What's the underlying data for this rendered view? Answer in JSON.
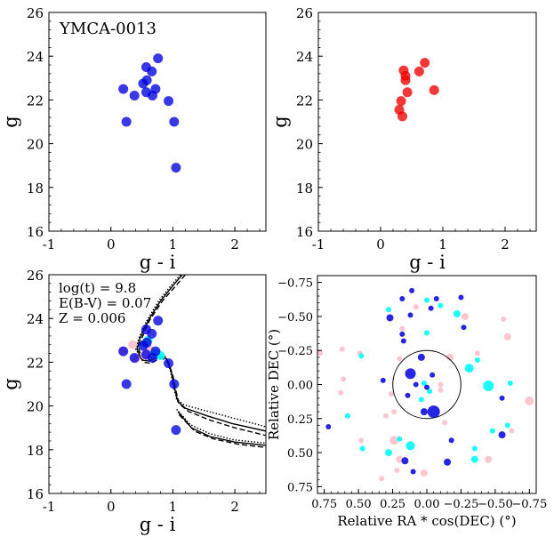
{
  "colors": {
    "blue": "#0000dd",
    "red": "#ee0000",
    "cyan": "#00ffff",
    "pink": "#ffc0cb",
    "axis": "#000000"
  },
  "chart_data": [
    {
      "type": "scatter",
      "id": "cmd_blue",
      "annotation": "YMCA-0013",
      "xlabel": "g - i",
      "ylabel": "g",
      "xlim": [
        -1,
        2.5
      ],
      "ylim": [
        26,
        16
      ],
      "xticks": [
        "-1",
        "0",
        "1",
        "2"
      ],
      "yticks": [
        "16",
        "18",
        "20",
        "22",
        "24",
        "26"
      ],
      "series": [
        {
          "color": "blue",
          "points": [
            [
              1.05,
              18.9
            ],
            [
              0.25,
              21.0
            ],
            [
              1.02,
              21.0
            ],
            [
              0.2,
              22.5
            ],
            [
              0.38,
              22.2
            ],
            [
              0.52,
              22.75
            ],
            [
              0.58,
              22.9
            ],
            [
              0.57,
              22.35
            ],
            [
              0.67,
              22.2
            ],
            [
              0.72,
              22.5
            ],
            [
              0.93,
              21.95
            ],
            [
              0.66,
              23.3
            ],
            [
              0.57,
              23.5
            ],
            [
              0.76,
              23.9
            ]
          ]
        }
      ]
    },
    {
      "type": "scatter",
      "id": "cmd_red",
      "xlabel": "g - i",
      "ylabel": "g",
      "xlim": [
        -1,
        2.5
      ],
      "ylim": [
        26,
        16
      ],
      "xticks": [
        "-1",
        "0",
        "1",
        "2"
      ],
      "yticks": [
        "16",
        "18",
        "20",
        "22",
        "24",
        "26"
      ],
      "series": [
        {
          "color": "red",
          "points": [
            [
              0.35,
              21.25
            ],
            [
              0.3,
              21.55
            ],
            [
              0.33,
              21.95
            ],
            [
              0.43,
              22.35
            ],
            [
              0.4,
              22.9
            ],
            [
              0.4,
              23.1
            ],
            [
              0.37,
              23.35
            ],
            [
              0.62,
              23.3
            ],
            [
              0.86,
              22.45
            ],
            [
              0.71,
              23.7
            ]
          ]
        }
      ]
    },
    {
      "type": "line",
      "id": "cmd_iso",
      "annotations": [
        "log(t) = 9.8",
        "E(B-V) = 0.07",
        "Z = 0.006"
      ],
      "xlabel": "g - i",
      "ylabel": "g",
      "xlim": [
        -1,
        2.5
      ],
      "ylim": [
        26,
        16
      ],
      "xticks": [
        "-1",
        "0",
        "1",
        "2"
      ],
      "yticks": [
        "16",
        "18",
        "20",
        "22",
        "24",
        "26"
      ],
      "isochrones": [
        {
          "style": "solid",
          "points": [
            [
              1.15,
              26.0
            ],
            [
              1.0,
              25.5
            ],
            [
              0.8,
              24.8
            ],
            [
              0.6,
              23.9
            ],
            [
              0.47,
              23.1
            ],
            [
              0.42,
              22.6
            ],
            [
              0.5,
              22.1
            ],
            [
              0.62,
              22.05
            ],
            [
              0.78,
              22.3
            ],
            [
              0.9,
              22.15
            ],
            [
              0.98,
              21.5
            ],
            [
              1.02,
              20.9
            ],
            [
              1.08,
              20.2
            ],
            [
              1.2,
              19.9
            ],
            [
              1.55,
              19.55
            ],
            [
              1.95,
              19.2
            ],
            [
              2.5,
              18.85
            ]
          ]
        },
        {
          "style": "solid",
          "points": [
            [
              1.08,
              19.75
            ],
            [
              1.3,
              19.0
            ],
            [
              1.6,
              18.6
            ],
            [
              2.0,
              18.35
            ],
            [
              2.5,
              18.2
            ]
          ]
        },
        {
          "style": "dashed",
          "points": [
            [
              1.2,
              26.0
            ],
            [
              1.05,
              25.5
            ],
            [
              0.83,
              24.8
            ],
            [
              0.62,
              23.9
            ],
            [
              0.5,
              23.1
            ],
            [
              0.45,
              22.6
            ],
            [
              0.52,
              22.0
            ],
            [
              0.64,
              21.95
            ],
            [
              0.8,
              22.2
            ],
            [
              0.92,
              22.05
            ],
            [
              1.0,
              21.4
            ],
            [
              1.04,
              20.8
            ],
            [
              1.1,
              20.1
            ],
            [
              1.25,
              19.75
            ],
            [
              1.6,
              19.35
            ],
            [
              2.0,
              19.0
            ],
            [
              2.5,
              18.65
            ]
          ]
        },
        {
          "style": "dashed",
          "points": [
            [
              1.1,
              19.6
            ],
            [
              1.35,
              18.85
            ],
            [
              1.65,
              18.5
            ],
            [
              2.05,
              18.25
            ],
            [
              2.5,
              18.1
            ]
          ]
        },
        {
          "style": "dotted",
          "points": [
            [
              1.12,
              26.0
            ],
            [
              0.97,
              25.5
            ],
            [
              0.77,
              24.8
            ],
            [
              0.58,
              23.9
            ],
            [
              0.45,
              23.1
            ],
            [
              0.4,
              22.6
            ],
            [
              0.48,
              22.2
            ],
            [
              0.6,
              22.1
            ],
            [
              0.76,
              22.4
            ],
            [
              0.88,
              22.25
            ],
            [
              0.96,
              21.6
            ],
            [
              1.0,
              21.0
            ],
            [
              1.06,
              20.3
            ],
            [
              1.18,
              20.05
            ],
            [
              1.5,
              19.8
            ],
            [
              1.9,
              19.5
            ],
            [
              2.5,
              19.05
            ]
          ]
        },
        {
          "style": "dotted",
          "points": [
            [
              1.06,
              19.85
            ],
            [
              1.28,
              19.15
            ],
            [
              1.58,
              18.75
            ],
            [
              1.98,
              18.45
            ],
            [
              2.5,
              18.3
            ]
          ]
        }
      ],
      "series": [
        {
          "color": "pink",
          "points": [
            [
              0.2,
              22.5
            ],
            [
              0.4,
              22.15
            ],
            [
              0.55,
              22.3
            ],
            [
              0.35,
              22.8
            ],
            [
              0.62,
              22.6
            ]
          ]
        },
        {
          "color": "cyan",
          "points": [
            [
              0.72,
              22.4
            ],
            [
              0.55,
              22.85
            ],
            [
              0.6,
              23.0
            ],
            [
              0.8,
              22.3
            ]
          ]
        },
        {
          "color": "blue",
          "points": [
            [
              1.05,
              18.9
            ],
            [
              0.25,
              21.0
            ],
            [
              1.02,
              21.0
            ],
            [
              0.2,
              22.5
            ],
            [
              0.38,
              22.2
            ],
            [
              0.52,
              22.75
            ],
            [
              0.58,
              22.9
            ],
            [
              0.57,
              22.35
            ],
            [
              0.67,
              22.2
            ],
            [
              0.72,
              22.5
            ],
            [
              0.93,
              21.95
            ],
            [
              0.66,
              23.3
            ],
            [
              0.57,
              23.5
            ],
            [
              0.76,
              23.9
            ]
          ]
        }
      ]
    },
    {
      "type": "scatter",
      "id": "sky",
      "xlabel": "Relative RA * cos(DEC) (°)",
      "ylabel": "Relative DEC (°)",
      "xlim": [
        0.8,
        -0.8
      ],
      "ylim": [
        -0.8,
        0.8
      ],
      "xticks": [
        "0.75",
        "0.50",
        "0.25",
        "0.00",
        "−0.25",
        "−0.50",
        "−0.75"
      ],
      "yticks": [
        "−0.75",
        "−0.50",
        "−0.25",
        "0.00",
        "0.25",
        "0.50",
        "0.75"
      ],
      "circle_radius": 0.25,
      "points": [
        {
          "x": 0.33,
          "y": 0.69,
          "c": "pink",
          "s": 3
        },
        {
          "x": 0.22,
          "y": 0.63,
          "c": "pink",
          "s": 3
        },
        {
          "x": 0.1,
          "y": 0.64,
          "c": "blue",
          "s": 3
        },
        {
          "x": 0.02,
          "y": 0.65,
          "c": "pink",
          "s": 4
        },
        {
          "x": -0.15,
          "y": 0.57,
          "c": "blue",
          "s": 4
        },
        {
          "x": -0.35,
          "y": 0.55,
          "c": "cyan",
          "s": 4
        },
        {
          "x": -0.45,
          "y": 0.55,
          "c": "pink",
          "s": 4
        },
        {
          "x": 0.47,
          "y": 0.47,
          "c": "cyan",
          "s": 3
        },
        {
          "x": 0.28,
          "y": 0.5,
          "c": "cyan",
          "s": 4
        },
        {
          "x": 0.2,
          "y": 0.55,
          "c": "pink",
          "s": 4
        },
        {
          "x": 0.16,
          "y": 0.56,
          "c": "blue",
          "s": 4
        },
        {
          "x": -0.35,
          "y": 0.47,
          "c": "cyan",
          "s": 3
        },
        {
          "x": 0.48,
          "y": 0.41,
          "c": "pink",
          "s": 3
        },
        {
          "x": 0.24,
          "y": 0.41,
          "c": "pink",
          "s": 5
        },
        {
          "x": 0.2,
          "y": 0.4,
          "c": "cyan",
          "s": 3
        },
        {
          "x": 0.12,
          "y": 0.45,
          "c": "cyan",
          "s": 5
        },
        {
          "x": -0.18,
          "y": 0.41,
          "c": "blue",
          "s": 3
        },
        {
          "x": -0.55,
          "y": 0.37,
          "c": "blue",
          "s": 4
        },
        {
          "x": -0.62,
          "y": 0.34,
          "c": "pink",
          "s": 3
        },
        {
          "x": -0.59,
          "y": 0.3,
          "c": "cyan",
          "s": 3
        },
        {
          "x": -0.48,
          "y": 0.34,
          "c": "cyan",
          "s": 3
        },
        {
          "x": 0.72,
          "y": 0.31,
          "c": "blue",
          "s": 3
        },
        {
          "x": 0.58,
          "y": 0.23,
          "c": "cyan",
          "s": 3
        },
        {
          "x": 0.3,
          "y": 0.23,
          "c": "pink",
          "s": 3
        },
        {
          "x": 0.24,
          "y": 0.2,
          "c": "pink",
          "s": 3
        },
        {
          "x": 0.02,
          "y": 0.2,
          "c": "blue",
          "s": 4
        },
        {
          "x": -0.05,
          "y": 0.2,
          "c": "blue",
          "s": 7
        },
        {
          "x": -0.13,
          "y": 0.28,
          "c": "pink",
          "s": 3
        },
        {
          "x": -0.55,
          "y": 0.1,
          "c": "blue",
          "s": 3
        },
        {
          "x": -0.75,
          "y": 0.12,
          "c": "pink",
          "s": 5
        },
        {
          "x": 0.63,
          "y": 0.06,
          "c": "pink",
          "s": 3
        },
        {
          "x": 0.26,
          "y": 0.07,
          "c": "pink",
          "s": 3
        },
        {
          "x": 0.14,
          "y": 0.08,
          "c": "blue",
          "s": 3
        },
        {
          "x": 0.04,
          "y": 0.11,
          "c": "cyan",
          "s": 3
        },
        {
          "x": -0.02,
          "y": 0.05,
          "c": "cyan",
          "s": 3
        },
        {
          "x": -0.1,
          "y": 0.04,
          "c": "pink",
          "s": 3
        },
        {
          "x": 0.0,
          "y": 0.02,
          "c": "blue",
          "s": 3
        },
        {
          "x": 0.08,
          "y": 0.0,
          "c": "blue",
          "s": 3
        },
        {
          "x": 0.02,
          "y": -0.01,
          "c": "cyan",
          "s": 3
        },
        {
          "x": -0.1,
          "y": 0.0,
          "c": "pink",
          "s": 3
        },
        {
          "x": -0.45,
          "y": 0.01,
          "c": "cyan",
          "s": 6
        },
        {
          "x": -0.61,
          "y": -0.01,
          "c": "cyan",
          "s": 3
        },
        {
          "x": 0.61,
          "y": -0.04,
          "c": "pink",
          "s": 3
        },
        {
          "x": 0.32,
          "y": -0.03,
          "c": "blue",
          "s": 3
        },
        {
          "x": 0.12,
          "y": -0.08,
          "c": "blue",
          "s": 6
        },
        {
          "x": -0.04,
          "y": -0.07,
          "c": "blue",
          "s": 3
        },
        {
          "x": -0.31,
          "y": -0.12,
          "c": "cyan",
          "s": 5
        },
        {
          "x": -0.37,
          "y": -0.18,
          "c": "cyan",
          "s": 3
        },
        {
          "x": 0.48,
          "y": -0.21,
          "c": "cyan",
          "s": 3
        },
        {
          "x": 0.2,
          "y": -0.19,
          "c": "pink",
          "s": 3
        },
        {
          "x": 0.04,
          "y": -0.2,
          "c": "blue",
          "s": 4
        },
        {
          "x": -0.17,
          "y": -0.2,
          "c": "pink",
          "s": 4
        },
        {
          "x": 0.78,
          "y": -0.23,
          "c": "pink",
          "s": 3
        },
        {
          "x": 0.62,
          "y": -0.26,
          "c": "pink",
          "s": 3
        },
        {
          "x": 0.49,
          "y": -0.23,
          "c": "pink",
          "s": 3
        },
        {
          "x": -0.37,
          "y": -0.23,
          "c": "pink",
          "s": 3
        },
        {
          "x": 0.17,
          "y": -0.32,
          "c": "blue",
          "s": 3
        },
        {
          "x": 0.18,
          "y": -0.37,
          "c": "blue",
          "s": 3
        },
        {
          "x": 0.18,
          "y": -0.41,
          "c": "pink",
          "s": 3
        },
        {
          "x": 0.0,
          "y": -0.38,
          "c": "cyan",
          "s": 3
        },
        {
          "x": -0.27,
          "y": -0.42,
          "c": "blue",
          "s": 3
        },
        {
          "x": -0.59,
          "y": -0.35,
          "c": "pink",
          "s": 4
        },
        {
          "x": 0.27,
          "y": -0.49,
          "c": "blue",
          "s": 4
        },
        {
          "x": 0.28,
          "y": -0.55,
          "c": "cyan",
          "s": 3
        },
        {
          "x": 0.12,
          "y": -0.51,
          "c": "blue",
          "s": 3
        },
        {
          "x": 0.08,
          "y": -0.57,
          "c": "pink",
          "s": 3
        },
        {
          "x": -0.03,
          "y": -0.56,
          "c": "blue",
          "s": 3
        },
        {
          "x": -0.1,
          "y": -0.58,
          "c": "cyan",
          "s": 3
        },
        {
          "x": -0.22,
          "y": -0.52,
          "c": "cyan",
          "s": 4
        },
        {
          "x": -0.28,
          "y": -0.5,
          "c": "pink",
          "s": 4
        },
        {
          "x": -0.56,
          "y": -0.48,
          "c": "pink",
          "s": 3
        },
        {
          "x": 0.18,
          "y": -0.63,
          "c": "blue",
          "s": 3
        },
        {
          "x": 0.11,
          "y": -0.69,
          "c": "blue",
          "s": 3
        },
        {
          "x": -0.07,
          "y": -0.63,
          "c": "blue",
          "s": 3
        },
        {
          "x": -0.25,
          "y": -0.64,
          "c": "blue",
          "s": 3
        },
        {
          "x": 0.0,
          "y": -0.62,
          "c": "cyan",
          "s": 3
        }
      ]
    }
  ]
}
